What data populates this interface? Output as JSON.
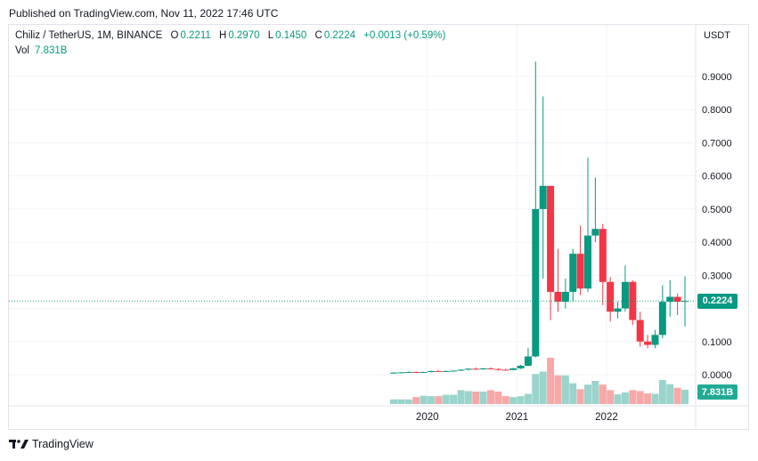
{
  "published": "Published on TradingView.com, Nov 11, 2022 17:46 UTC",
  "legend": {
    "symbol": "Chiliz / TetherUS, 1M, BINANCE",
    "o_label": "O",
    "o": "0.2211",
    "h_label": "H",
    "h": "0.2970",
    "l_label": "L",
    "l": "0.1450",
    "c_label": "C",
    "c": "0.2224",
    "change": "+0.0013 (+0.59%)",
    "vol_label": "Vol",
    "vol": "7.831B"
  },
  "unit": "USDT",
  "price_tag": "0.2224",
  "vol_tag": "7.831B",
  "branding": "TradingView",
  "colors": {
    "up": "#089981",
    "down": "#f23645",
    "vol_up": "#9ad4cc",
    "vol_down": "#f7a9a7",
    "grid": "#f0f3fa",
    "axis_text": "#131722"
  },
  "chart_data": {
    "type": "candlestick",
    "y_ticks": [
      "0.9000",
      "0.8000",
      "0.7000",
      "0.6000",
      "0.5000",
      "0.4000",
      "0.3000",
      "0.1000",
      "0.0000"
    ],
    "x_ticks": [
      "2020",
      "2021",
      "2022"
    ],
    "ylim": [
      -0.02,
      0.96
    ],
    "last_close": 0.2224,
    "candles": [
      {
        "o": 0.005,
        "h": 0.008,
        "l": 0.004,
        "c": 0.006
      },
      {
        "o": 0.006,
        "h": 0.008,
        "l": 0.005,
        "c": 0.007
      },
      {
        "o": 0.007,
        "h": 0.01,
        "l": 0.006,
        "c": 0.008
      },
      {
        "o": 0.008,
        "h": 0.01,
        "l": 0.006,
        "c": 0.007
      },
      {
        "o": 0.007,
        "h": 0.009,
        "l": 0.006,
        "c": 0.008
      },
      {
        "o": 0.008,
        "h": 0.012,
        "l": 0.007,
        "c": 0.011
      },
      {
        "o": 0.011,
        "h": 0.014,
        "l": 0.009,
        "c": 0.01
      },
      {
        "o": 0.01,
        "h": 0.013,
        "l": 0.009,
        "c": 0.011
      },
      {
        "o": 0.011,
        "h": 0.013,
        "l": 0.01,
        "c": 0.012
      },
      {
        "o": 0.012,
        "h": 0.016,
        "l": 0.011,
        "c": 0.015
      },
      {
        "o": 0.015,
        "h": 0.019,
        "l": 0.013,
        "c": 0.018
      },
      {
        "o": 0.018,
        "h": 0.022,
        "l": 0.015,
        "c": 0.016
      },
      {
        "o": 0.016,
        "h": 0.02,
        "l": 0.015,
        "c": 0.019
      },
      {
        "o": 0.019,
        "h": 0.022,
        "l": 0.016,
        "c": 0.017
      },
      {
        "o": 0.017,
        "h": 0.019,
        "l": 0.013,
        "c": 0.015
      },
      {
        "o": 0.015,
        "h": 0.018,
        "l": 0.013,
        "c": 0.014
      },
      {
        "o": 0.014,
        "h": 0.02,
        "l": 0.013,
        "c": 0.019
      },
      {
        "o": 0.019,
        "h": 0.03,
        "l": 0.017,
        "c": 0.027
      },
      {
        "o": 0.027,
        "h": 0.08,
        "l": 0.025,
        "c": 0.055
      },
      {
        "o": 0.055,
        "h": 0.945,
        "l": 0.052,
        "c": 0.5
      },
      {
        "o": 0.5,
        "h": 0.84,
        "l": 0.29,
        "c": 0.57
      },
      {
        "o": 0.57,
        "h": 0.57,
        "l": 0.165,
        "c": 0.25
      },
      {
        "o": 0.25,
        "h": 0.38,
        "l": 0.19,
        "c": 0.22
      },
      {
        "o": 0.22,
        "h": 0.29,
        "l": 0.2,
        "c": 0.25
      },
      {
        "o": 0.25,
        "h": 0.38,
        "l": 0.22,
        "c": 0.365
      },
      {
        "o": 0.365,
        "h": 0.45,
        "l": 0.24,
        "c": 0.26
      },
      {
        "o": 0.26,
        "h": 0.655,
        "l": 0.25,
        "c": 0.42
      },
      {
        "o": 0.42,
        "h": 0.595,
        "l": 0.4,
        "c": 0.44
      },
      {
        "o": 0.44,
        "h": 0.455,
        "l": 0.21,
        "c": 0.28
      },
      {
        "o": 0.28,
        "h": 0.295,
        "l": 0.16,
        "c": 0.19
      },
      {
        "o": 0.19,
        "h": 0.22,
        "l": 0.17,
        "c": 0.2
      },
      {
        "o": 0.2,
        "h": 0.33,
        "l": 0.19,
        "c": 0.28
      },
      {
        "o": 0.28,
        "h": 0.285,
        "l": 0.15,
        "c": 0.165
      },
      {
        "o": 0.165,
        "h": 0.19,
        "l": 0.085,
        "c": 0.1
      },
      {
        "o": 0.1,
        "h": 0.12,
        "l": 0.08,
        "c": 0.09
      },
      {
        "o": 0.09,
        "h": 0.135,
        "l": 0.08,
        "c": 0.12
      },
      {
        "o": 0.12,
        "h": 0.27,
        "l": 0.11,
        "c": 0.22
      },
      {
        "o": 0.22,
        "h": 0.285,
        "l": 0.175,
        "c": 0.235
      },
      {
        "o": 0.235,
        "h": 0.245,
        "l": 0.18,
        "c": 0.22
      },
      {
        "o": 0.2211,
        "h": 0.297,
        "l": 0.145,
        "c": 0.2224
      }
    ],
    "volumes": [
      0.1,
      0.1,
      0.1,
      0.15,
      0.18,
      0.17,
      0.17,
      0.2,
      0.2,
      0.3,
      0.28,
      0.27,
      0.27,
      0.3,
      0.27,
      0.17,
      0.15,
      0.17,
      0.22,
      0.65,
      0.7,
      1.0,
      0.62,
      0.62,
      0.45,
      0.32,
      0.42,
      0.5,
      0.42,
      0.3,
      0.21,
      0.25,
      0.3,
      0.28,
      0.23,
      0.22,
      0.52,
      0.43,
      0.35,
      0.31
    ]
  }
}
